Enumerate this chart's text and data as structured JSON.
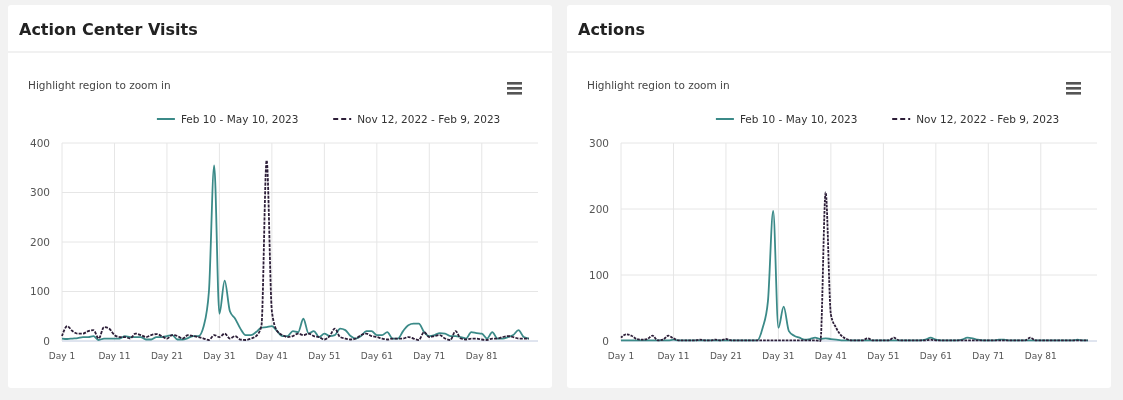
{
  "chart_data": [
    {
      "type": "line",
      "title": "Action Center Visits",
      "subtitle": "Highlight region to zoom in",
      "categories": [
        "Day 1",
        null,
        null,
        null,
        null,
        null,
        null,
        null,
        null,
        null,
        "Day 11",
        null,
        null,
        null,
        null,
        null,
        null,
        null,
        null,
        null,
        "Day 21",
        null,
        null,
        null,
        null,
        null,
        null,
        null,
        null,
        null,
        "Day 31",
        null,
        null,
        null,
        null,
        null,
        null,
        null,
        null,
        null,
        "Day 41",
        null,
        null,
        null,
        null,
        null,
        null,
        null,
        null,
        null,
        "Day 51",
        null,
        null,
        null,
        null,
        null,
        null,
        null,
        null,
        null,
        "Day 61",
        null,
        null,
        null,
        null,
        null,
        null,
        null,
        null,
        null,
        "Day 71",
        null,
        null,
        null,
        null,
        null,
        null,
        null,
        null,
        null,
        "Day 81",
        null,
        null,
        null,
        null,
        null,
        null,
        null,
        null,
        null
      ],
      "series": [
        {
          "name": "Feb 10 - May 10, 2023",
          "color": "#3b8a88",
          "line_style": "solid",
          "values": [
            5,
            4,
            5,
            6,
            8,
            8,
            10,
            2,
            5,
            5,
            5,
            5,
            10,
            8,
            8,
            8,
            3,
            3,
            8,
            8,
            10,
            12,
            3,
            3,
            6,
            10,
            10,
            30,
            100,
            355,
            55,
            122,
            60,
            45,
            25,
            12,
            12,
            18,
            27,
            28,
            30,
            20,
            10,
            10,
            20,
            18,
            45,
            15,
            20,
            8,
            15,
            10,
            12,
            25,
            22,
            10,
            5,
            10,
            20,
            20,
            12,
            12,
            18,
            5,
            5,
            20,
            32,
            35,
            35,
            18,
            10,
            12,
            16,
            15,
            10,
            10,
            8,
            5,
            18,
            16,
            15,
            5,
            18,
            5,
            5,
            8,
            12,
            22,
            8,
            5
          ]
        },
        {
          "name": "Nov 12, 2022 - Feb 9, 2023",
          "color": "#2d1e38",
          "line_style": "dashed",
          "values": [
            10,
            30,
            20,
            15,
            15,
            20,
            22,
            5,
            28,
            25,
            12,
            8,
            8,
            5,
            15,
            12,
            8,
            12,
            14,
            10,
            5,
            12,
            10,
            5,
            12,
            10,
            8,
            5,
            2,
            12,
            8,
            15,
            5,
            10,
            3,
            2,
            5,
            10,
            30,
            365,
            60,
            20,
            12,
            8,
            10,
            15,
            12,
            15,
            10,
            8,
            3,
            10,
            25,
            8,
            5,
            3,
            5,
            12,
            15,
            10,
            8,
            5,
            3,
            5,
            5,
            5,
            8,
            5,
            2,
            18,
            8,
            10,
            12,
            5,
            2,
            20,
            5,
            3,
            5,
            5,
            3,
            2,
            5,
            5,
            8,
            10,
            8,
            5,
            5,
            5
          ]
        }
      ],
      "ylim": [
        0,
        400
      ],
      "yticks": [
        0,
        100,
        200,
        300,
        400
      ],
      "grid": true,
      "legend": "top right"
    },
    {
      "type": "line",
      "title": "Actions",
      "subtitle": "Highlight region to zoom in",
      "categories": [
        "Day 1",
        null,
        null,
        null,
        null,
        null,
        null,
        null,
        null,
        null,
        "Day 11",
        null,
        null,
        null,
        null,
        null,
        null,
        null,
        null,
        null,
        "Day 21",
        null,
        null,
        null,
        null,
        null,
        null,
        null,
        null,
        null,
        "Day 31",
        null,
        null,
        null,
        null,
        null,
        null,
        null,
        null,
        null,
        "Day 41",
        null,
        null,
        null,
        null,
        null,
        null,
        null,
        null,
        null,
        "Day 51",
        null,
        null,
        null,
        null,
        null,
        null,
        null,
        null,
        null,
        "Day 61",
        null,
        null,
        null,
        null,
        null,
        null,
        null,
        null,
        null,
        "Day 71",
        null,
        null,
        null,
        null,
        null,
        null,
        null,
        null,
        null,
        "Day 81",
        null,
        null,
        null,
        null,
        null,
        null,
        null,
        null,
        null
      ],
      "series": [
        {
          "name": "Feb 10 - May 10, 2023",
          "color": "#3b8a88",
          "line_style": "solid",
          "values": [
            1,
            1,
            1,
            1,
            1,
            1,
            1,
            1,
            1,
            1,
            2,
            1,
            1,
            1,
            1,
            1,
            1,
            1,
            1,
            1,
            1,
            1,
            1,
            1,
            1,
            1,
            1,
            20,
            60,
            197,
            20,
            52,
            15,
            8,
            5,
            2,
            3,
            5,
            3,
            4,
            3,
            2,
            1,
            1,
            1,
            1,
            1,
            1,
            1,
            1,
            1,
            1,
            1,
            1,
            1,
            1,
            1,
            1,
            2,
            5,
            2,
            1,
            1,
            1,
            1,
            2,
            5,
            4,
            2,
            1,
            1,
            1,
            2,
            2,
            1,
            1,
            1,
            1,
            1,
            1,
            1,
            1,
            1,
            1,
            1,
            1,
            1,
            2,
            1,
            1
          ]
        },
        {
          "name": "Nov 12, 2022 - Feb 9, 2023",
          "color": "#2d1e38",
          "line_style": "dashed",
          "values": [
            5,
            10,
            8,
            3,
            2,
            3,
            8,
            1,
            2,
            8,
            4,
            1,
            1,
            1,
            1,
            2,
            1,
            1,
            2,
            1,
            3,
            1,
            1,
            1,
            1,
            1,
            1,
            1,
            1,
            1,
            1,
            1,
            1,
            1,
            1,
            1,
            1,
            1,
            0,
            225,
            40,
            20,
            8,
            3,
            1,
            1,
            1,
            4,
            1,
            1,
            1,
            1,
            5,
            1,
            1,
            1,
            1,
            1,
            1,
            2,
            1,
            1,
            1,
            1,
            1,
            1,
            1,
            1,
            1,
            1,
            1,
            1,
            1,
            1,
            1,
            1,
            1,
            1,
            5,
            1,
            1,
            1,
            1,
            1,
            1,
            1,
            1,
            1,
            1,
            1
          ]
        }
      ],
      "ylim": [
        0,
        300
      ],
      "yticks": [
        0,
        100,
        200,
        300
      ],
      "grid": true,
      "legend": "top right"
    }
  ]
}
